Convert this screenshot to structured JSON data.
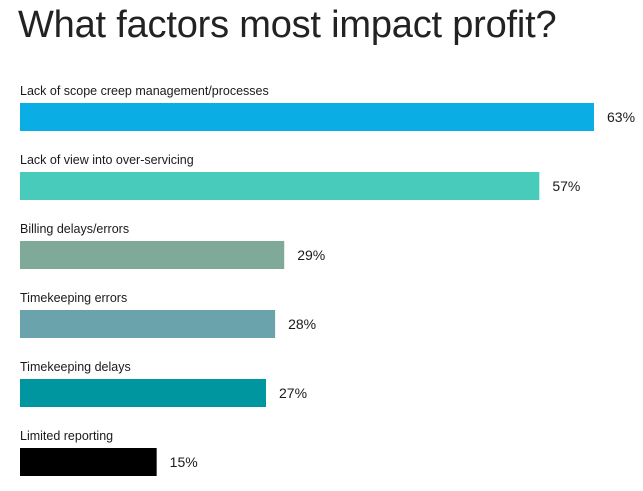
{
  "chart_data": {
    "type": "bar",
    "orientation": "horizontal",
    "title": "What factors most impact profit?",
    "xlabel": "",
    "ylabel": "",
    "xlim": [
      0,
      63
    ],
    "grid": false,
    "categories": [
      "Lack of scope creep management/processes",
      "Lack of view into over-servicing",
      "Billing delays/errors",
      "Timekeeping errors",
      "Timekeeping delays",
      "Limited reporting"
    ],
    "values": [
      63,
      57,
      29,
      28,
      27,
      15
    ],
    "value_labels": [
      "63%",
      "57%",
      "29%",
      "28%",
      "27%",
      "15%"
    ],
    "colors": [
      "#0aaee4",
      "#48cbbb",
      "#7faa9a",
      "#6aa3ac",
      "#00969f",
      "#000000"
    ]
  }
}
